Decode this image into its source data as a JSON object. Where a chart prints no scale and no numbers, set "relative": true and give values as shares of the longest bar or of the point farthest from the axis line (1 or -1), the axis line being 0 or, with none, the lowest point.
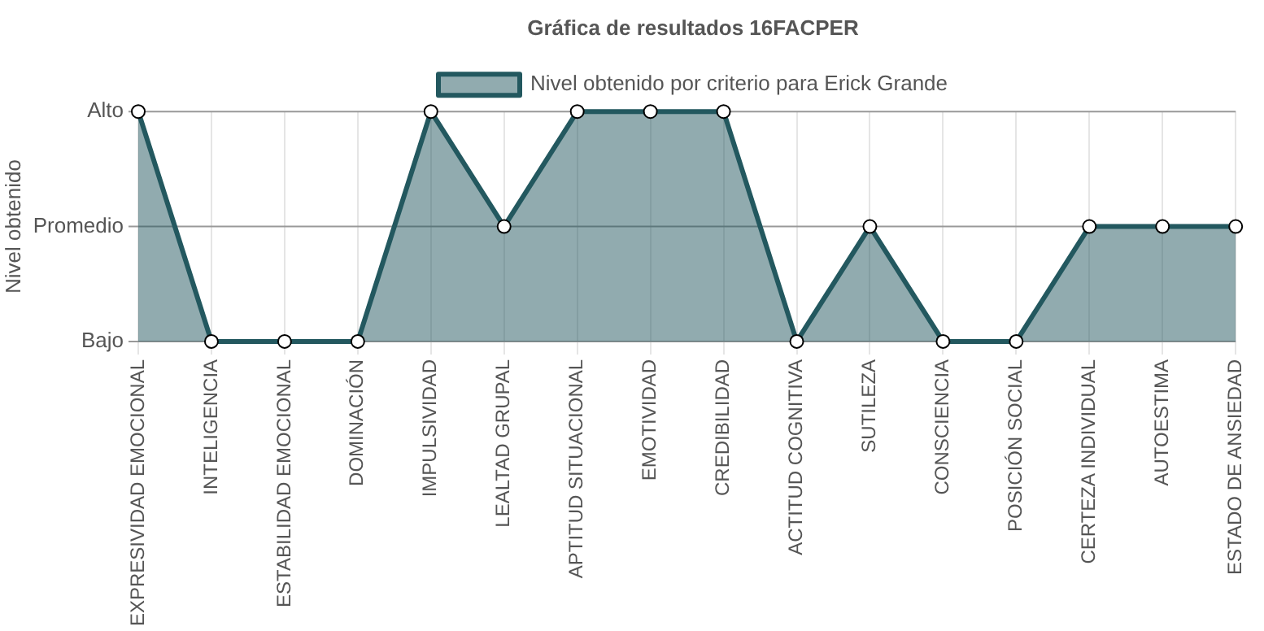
{
  "chart_data": {
    "type": "area",
    "title": "Gráfica de resultados 16FACPER",
    "ylabel": "Nivel obtenido",
    "relative": true,
    "categories": [
      "EXPRESIVIDAD EMOCIONAL",
      "INTELIGENCIA",
      "ESTABILIDAD EMOCIONAL",
      "DOMINACIÓN",
      "IMPULSIVIDAD",
      "LEALTAD GRUPAL",
      "APTITUD SITUACIONAL",
      "EMOTIVIDAD",
      "CREDIBILIDAD",
      "ACTITUD COGNITIVA",
      "SUTILEZA",
      "CONSCIENCIA",
      "POSICIÓN SOCIAL",
      "CERTEZA INDIVIDUAL",
      "AUTOESTIMA",
      "ESTADO DE ANSIEDAD"
    ],
    "series": [
      {
        "name": "Nivel obtenido por criterio para Erick Grande",
        "color": "#23585f",
        "values": [
          1,
          0,
          0,
          0,
          1,
          0.5,
          1,
          1,
          1,
          0,
          0.5,
          0,
          0,
          0.5,
          0.5,
          0.5
        ]
      }
    ],
    "annotations": [
      "Alto",
      "Bajo"
    ],
    "ref_lines": [
      {
        "axis": "y",
        "value": 0.5,
        "label": "Promedio",
        "color": "#999999"
      }
    ],
    "grid": true,
    "legend": "top",
    "marker": "circle",
    "line_style": "solid"
  }
}
